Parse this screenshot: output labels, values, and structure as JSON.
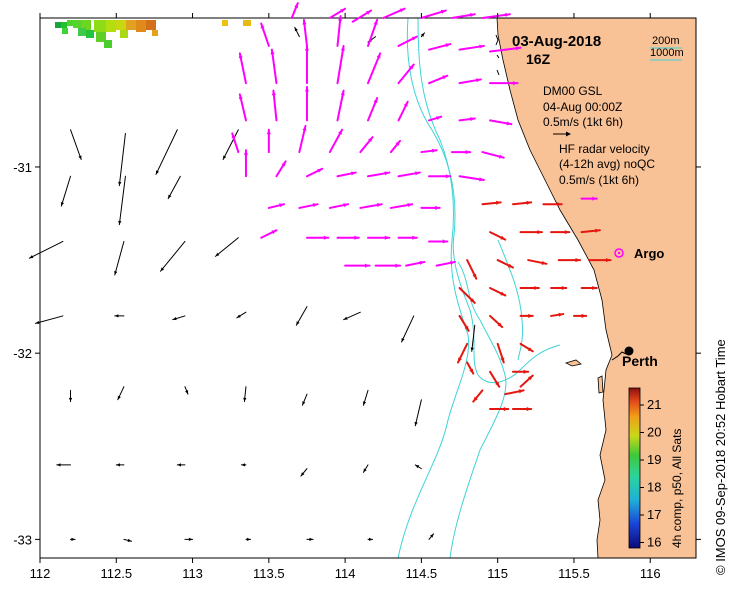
{
  "title": {
    "date": "03-Aug-2018",
    "time": "16Z"
  },
  "bathymetry_legend": {
    "contour_200": "200m",
    "contour_1000": "1000m",
    "line_color": "#3fd3d6"
  },
  "model_legend": {
    "name": "DM00 GSL",
    "valid": "04-Aug 00:00Z",
    "scale": "0.5m/s (1kt 6h)"
  },
  "radar_legend": {
    "line1": "HF radar velocity",
    "line2": "(4-12h avg) noQC",
    "scale": "0.5m/s (1kt 6h)"
  },
  "markers": {
    "argo": "Argo",
    "perth": "Perth"
  },
  "colorbar": {
    "ticks": [
      "21",
      "20",
      "19",
      "18",
      "17",
      "16"
    ],
    "label": "4h comp, p50, All Sats"
  },
  "axes": {
    "x_ticks": [
      "112",
      "112.5",
      "113",
      "113.5",
      "114",
      "114.5",
      "115",
      "115.5",
      "116"
    ],
    "y_ticks": [
      "-31",
      "-32",
      "-33"
    ]
  },
  "footer": "© IMOS 09-Sep-2018 20:52 Hobart Time",
  "colors": {
    "land": "#f9c196",
    "model_arrow": "#000000",
    "radar_arrow": "#ff00ff",
    "sst_arrow": "#e5160f",
    "argo": "#ff00ff"
  },
  "chart_data": {
    "type": "map",
    "x_range": [
      112,
      116.3
    ],
    "y_range": [
      -33.1,
      -30.2
    ],
    "model_vectors": [
      [
        112.2,
        -30.8,
        0.07,
        -0.16
      ],
      [
        112.56,
        -30.82,
        -0.04,
        -0.28
      ],
      [
        112.9,
        -30.8,
        -0.14,
        -0.24
      ],
      [
        113.3,
        -30.8,
        -0.1,
        -0.16
      ],
      [
        112.2,
        -31.05,
        -0.06,
        -0.16
      ],
      [
        112.56,
        -31.05,
        -0.04,
        -0.26
      ],
      [
        112.92,
        -31.05,
        -0.08,
        -0.12
      ],
      [
        112.15,
        -31.4,
        -0.22,
        -0.09
      ],
      [
        112.55,
        -31.4,
        -0.06,
        -0.18
      ],
      [
        112.95,
        -31.4,
        -0.16,
        -0.16
      ],
      [
        113.3,
        -31.38,
        -0.15,
        -0.1
      ],
      [
        112.15,
        -31.8,
        -0.18,
        -0.04
      ],
      [
        112.55,
        -31.8,
        -0.06,
        0
      ],
      [
        112.95,
        -31.8,
        -0.08,
        -0.02
      ],
      [
        113.35,
        -31.78,
        -0.06,
        -0.03
      ],
      [
        113.75,
        -31.75,
        -0.07,
        -0.1
      ],
      [
        114.1,
        -31.78,
        -0.11,
        -0.04
      ],
      [
        114.45,
        -31.8,
        -0.08,
        -0.14
      ],
      [
        114.85,
        -31.85,
        -0.02,
        -0.14
      ],
      [
        112.2,
        -32.2,
        0,
        -0.06
      ],
      [
        112.55,
        -32.18,
        -0.04,
        -0.07
      ],
      [
        112.95,
        -32.18,
        0.02,
        -0.04
      ],
      [
        113.35,
        -32.18,
        -0.01,
        -0.08
      ],
      [
        113.75,
        -32.22,
        -0.03,
        -0.06
      ],
      [
        114.15,
        -32.2,
        -0.03,
        -0.08
      ],
      [
        114.5,
        -32.25,
        -0.04,
        -0.14
      ],
      [
        112.2,
        -32.6,
        -0.09,
        0
      ],
      [
        112.55,
        -32.6,
        -0.05,
        0
      ],
      [
        112.95,
        -32.6,
        -0.05,
        0
      ],
      [
        113.35,
        -32.6,
        -0.03,
        0
      ],
      [
        113.75,
        -32.62,
        -0.04,
        -0.04
      ],
      [
        114.15,
        -32.6,
        -0.03,
        -0.04
      ],
      [
        114.5,
        -32.62,
        -0.04,
        0.02
      ],
      [
        112.2,
        -33.0,
        0.03,
        0
      ],
      [
        112.55,
        -33.0,
        0.05,
        -0.01
      ],
      [
        112.95,
        -33.0,
        0.05,
        0
      ],
      [
        113.35,
        -33.0,
        0.03,
        0
      ],
      [
        113.75,
        -33.0,
        0.04,
        0
      ],
      [
        114.15,
        -33.0,
        0.03,
        0
      ],
      [
        114.55,
        -33.0,
        0.03,
        0.03
      ],
      [
        113.7,
        -30.3,
        -0.03,
        0.05
      ],
      [
        114.2,
        -30.3,
        -0.05,
        -0.03
      ],
      [
        114.5,
        -30.3,
        0.02,
        0.02
      ]
    ],
    "radar_vectors": [
      [
        113.65,
        -30.2,
        0.04,
        0.08
      ],
      [
        113.9,
        -30.2,
        0.1,
        0.05
      ],
      [
        114.05,
        -30.22,
        0.12,
        0.06
      ],
      [
        114.25,
        -30.2,
        0.14,
        0.05
      ],
      [
        114.5,
        -30.2,
        0.16,
        0.04
      ],
      [
        114.7,
        -30.2,
        0.15,
        0.02
      ],
      [
        114.9,
        -30.2,
        0.18,
        0.02
      ],
      [
        113.5,
        -30.35,
        -0.05,
        0.12
      ],
      [
        113.75,
        -30.35,
        -0.02,
        0.14
      ],
      [
        113.95,
        -30.35,
        0.02,
        0.16
      ],
      [
        114.15,
        -30.35,
        0.06,
        0.14
      ],
      [
        114.35,
        -30.35,
        0.12,
        0.05
      ],
      [
        114.55,
        -30.37,
        0.14,
        0.03
      ],
      [
        114.75,
        -30.37,
        0.16,
        0.02
      ],
      [
        114.95,
        -30.38,
        0.2,
        0.02
      ],
      [
        113.35,
        -30.55,
        -0.04,
        0.16
      ],
      [
        113.55,
        -30.55,
        -0.03,
        0.18
      ],
      [
        113.75,
        -30.55,
        0,
        0.2
      ],
      [
        113.95,
        -30.55,
        0.04,
        0.2
      ],
      [
        114.15,
        -30.55,
        0.08,
        0.16
      ],
      [
        114.35,
        -30.55,
        0.1,
        0.1
      ],
      [
        114.55,
        -30.55,
        0.12,
        0.04
      ],
      [
        114.75,
        -30.55,
        0.14,
        0.02
      ],
      [
        114.95,
        -30.55,
        0.18,
        0
      ],
      [
        113.35,
        -30.75,
        -0.04,
        0.14
      ],
      [
        113.55,
        -30.75,
        -0.02,
        0.16
      ],
      [
        113.75,
        -30.75,
        0,
        0.18
      ],
      [
        113.95,
        -30.75,
        0.04,
        0.16
      ],
      [
        114.15,
        -30.75,
        0.06,
        0.12
      ],
      [
        114.35,
        -30.75,
        0.06,
        0.1
      ],
      [
        114.55,
        -30.75,
        0.08,
        0.02
      ],
      [
        114.75,
        -30.75,
        0.1,
        0.01
      ],
      [
        114.95,
        -30.75,
        0.14,
        -0.02
      ],
      [
        113.3,
        -30.92,
        -0.04,
        0.1
      ],
      [
        113.5,
        -30.92,
        0,
        0.12
      ],
      [
        113.7,
        -30.92,
        0.04,
        0.14
      ],
      [
        113.9,
        -30.92,
        0.08,
        0.12
      ],
      [
        114.1,
        -30.92,
        0.08,
        0.08
      ],
      [
        114.3,
        -30.92,
        0.06,
        0.06
      ],
      [
        114.5,
        -30.92,
        0.1,
        0.01
      ],
      [
        114.7,
        -30.92,
        0.12,
        0
      ],
      [
        114.9,
        -30.92,
        0.14,
        -0.03
      ],
      [
        113.35,
        -31.05,
        0,
        0.14
      ],
      [
        113.55,
        -31.05,
        0.06,
        0.08
      ],
      [
        113.75,
        -31.05,
        0.1,
        0.04
      ],
      [
        113.95,
        -31.05,
        0.12,
        0.02
      ],
      [
        114.15,
        -31.05,
        0.14,
        0.02
      ],
      [
        114.35,
        -31.05,
        0.14,
        0.02
      ],
      [
        114.55,
        -31.05,
        0.14,
        0
      ],
      [
        114.75,
        -31.05,
        0.16,
        -0.02
      ],
      [
        113.5,
        -31.22,
        0.1,
        0.02
      ],
      [
        113.7,
        -31.22,
        0.12,
        0.02
      ],
      [
        113.9,
        -31.22,
        0.12,
        0.02
      ],
      [
        114.1,
        -31.22,
        0.14,
        0.02
      ],
      [
        114.3,
        -31.22,
        0.14,
        0.02
      ],
      [
        114.5,
        -31.22,
        0.12,
        0
      ],
      [
        113.45,
        -31.38,
        0.1,
        0.04
      ],
      [
        113.75,
        -31.38,
        0.14,
        0
      ],
      [
        113.95,
        -31.38,
        0.14,
        0
      ],
      [
        114.15,
        -31.38,
        0.14,
        0
      ],
      [
        114.35,
        -31.38,
        0.12,
        0
      ],
      [
        114.55,
        -31.4,
        0.12,
        0
      ],
      [
        114.0,
        -31.53,
        0.16,
        0
      ],
      [
        114.2,
        -31.53,
        0.16,
        0
      ],
      [
        114.4,
        -31.53,
        0.12,
        0.02
      ],
      [
        114.6,
        -31.53,
        0.12,
        0.02
      ],
      [
        115.55,
        -31.17,
        0.1,
        0
      ]
    ],
    "sst_vectors": [
      [
        114.9,
        -31.2,
        0.12,
        0.01
      ],
      [
        115.1,
        -31.2,
        0.12,
        0.01
      ],
      [
        115.3,
        -31.2,
        0.12,
        0
      ],
      [
        114.95,
        -31.35,
        0.1,
        -0.04
      ],
      [
        115.15,
        -31.35,
        0.14,
        0
      ],
      [
        115.35,
        -31.35,
        0.12,
        0
      ],
      [
        115.55,
        -31.35,
        0.12,
        0.01
      ],
      [
        114.8,
        -31.5,
        0.06,
        -0.1
      ],
      [
        115.0,
        -31.5,
        0.1,
        -0.04
      ],
      [
        115.2,
        -31.5,
        0.12,
        -0.02
      ],
      [
        115.4,
        -31.5,
        0.14,
        0
      ],
      [
        115.6,
        -31.5,
        0.14,
        0
      ],
      [
        114.75,
        -31.65,
        0.1,
        -0.08
      ],
      [
        114.95,
        -31.65,
        0.1,
        -0.04
      ],
      [
        115.15,
        -31.65,
        0.12,
        0
      ],
      [
        115.35,
        -31.65,
        0.1,
        0
      ],
      [
        115.55,
        -31.65,
        0.1,
        0
      ],
      [
        114.75,
        -31.8,
        0.06,
        -0.08
      ],
      [
        114.95,
        -31.8,
        0.08,
        -0.06
      ],
      [
        115.15,
        -31.8,
        0.08,
        0
      ],
      [
        115.35,
        -31.8,
        0.08,
        0.01
      ],
      [
        115.5,
        -31.8,
        0.08,
        0
      ],
      [
        114.8,
        -31.95,
        -0.06,
        -0.1
      ],
      [
        115.0,
        -31.95,
        0.04,
        -0.1
      ],
      [
        115.15,
        -31.95,
        0.08,
        -0.04
      ],
      [
        114.8,
        -32.05,
        0.04,
        -0.06
      ],
      [
        114.95,
        -32.1,
        0.06,
        -0.08
      ],
      [
        115.1,
        -32.1,
        0.1,
        0
      ],
      [
        114.9,
        -32.2,
        -0.06,
        -0.06
      ],
      [
        115.05,
        -32.22,
        0.12,
        0.02
      ],
      [
        115.15,
        -32.18,
        0.08,
        0.06
      ],
      [
        114.95,
        -32.3,
        0.12,
        0
      ],
      [
        115.1,
        -32.3,
        0.12,
        0
      ]
    ],
    "argo_location": [
      115.78,
      -31.4
    ],
    "perth_location": [
      115.86,
      -31.95
    ]
  }
}
